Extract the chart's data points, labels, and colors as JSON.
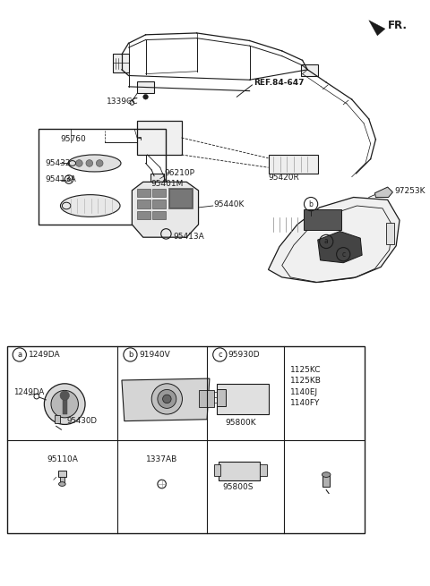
{
  "bg_color": "#ffffff",
  "lc": "#1a1a1a",
  "labels": {
    "FR": "FR.",
    "REF": "REF.84-647",
    "1339CC": "1339CC",
    "95760": "95760",
    "96210P": "96210P",
    "95401M": "95401M",
    "95420R": "95420R",
    "95440K": "95440K",
    "95432": "95432",
    "95413A_1": "95413A",
    "95413A_2": "95413A",
    "91940V": "91940V",
    "95930D": "95930D",
    "1249DA": "1249DA",
    "95430D": "95430D",
    "95110A": "95110A",
    "1337AB": "1337AB",
    "95800K": "95800K",
    "95800S": "95800S",
    "1125KC": "1125KC",
    "1125KB": "1125KB",
    "1140EJ": "1140EJ",
    "1140FY": "1140FY",
    "97253K": "97253K"
  }
}
